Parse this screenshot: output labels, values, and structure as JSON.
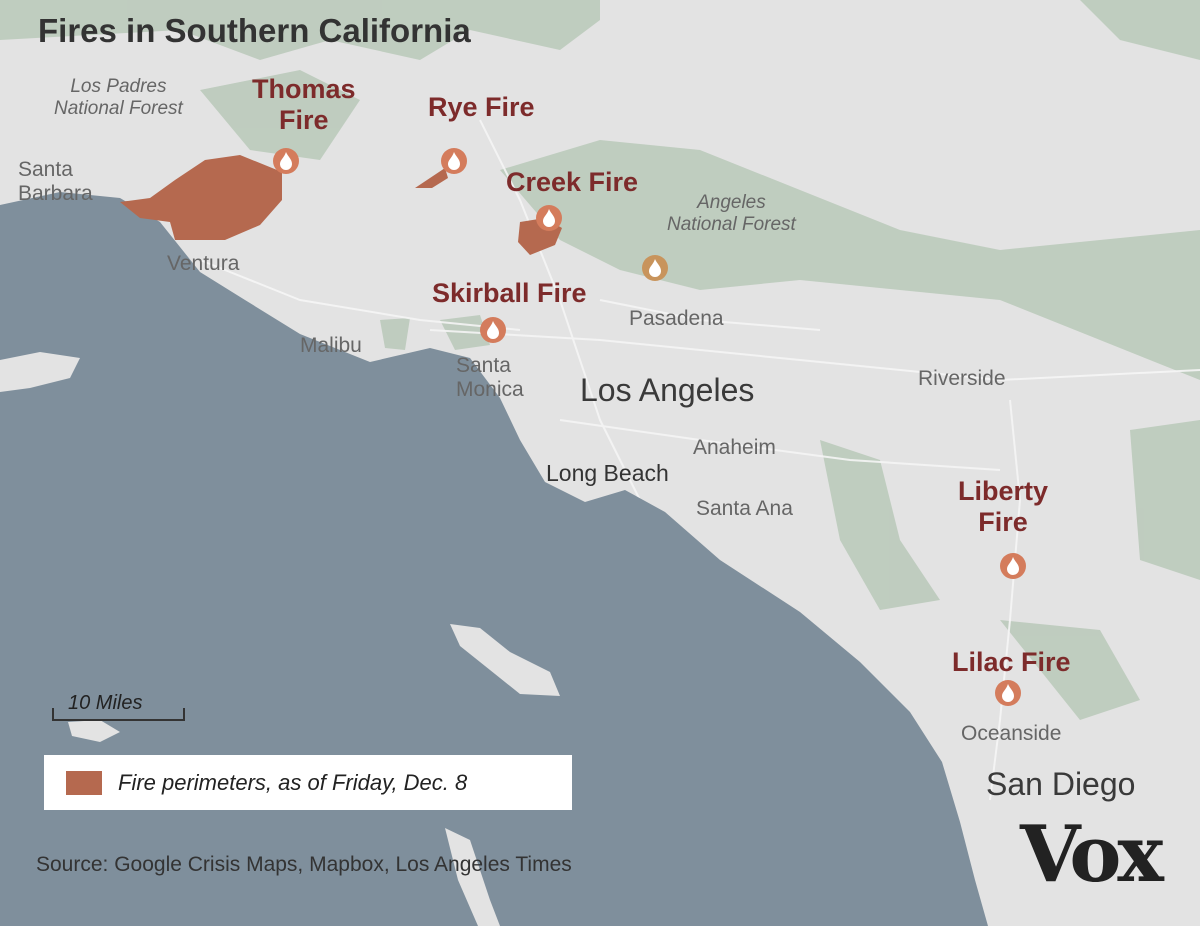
{
  "title": "Fires in Southern California",
  "colors": {
    "ocean": "#7f8f9c",
    "land": "#e3e3e3",
    "forest": "#b9c9b9",
    "fire_perimeter": "#b5694f",
    "fire_icon": "#d47c5c",
    "fire_icon_alt": "#c8945c",
    "fire_label": "#7d2b2b"
  },
  "forests": [
    {
      "name": "Los Padres\nNational Forest",
      "line1": "Los Padres",
      "line2": "National Forest"
    },
    {
      "line1": "Angeles",
      "line2": "National Forest"
    }
  ],
  "fires": [
    {
      "line1": "Thomas",
      "line2": "Fire"
    },
    {
      "line1": "Rye Fire"
    },
    {
      "line1": "Creek Fire"
    },
    {
      "line1": "Skirball Fire"
    },
    {
      "line1": "Liberty",
      "line2": "Fire"
    },
    {
      "line1": "Lilac Fire"
    }
  ],
  "cities": {
    "santa_barbara": [
      "Santa",
      "Barbara"
    ],
    "ventura": "Ventura",
    "malibu": "Malibu",
    "santa_monica": [
      "Santa",
      "Monica"
    ],
    "pasadena": "Pasadena",
    "los_angeles": "Los Angeles",
    "riverside": "Riverside",
    "anaheim": "Anaheim",
    "long_beach": "Long Beach",
    "santa_ana": "Santa Ana",
    "oceanside": "Oceanside",
    "san_diego": "San Diego"
  },
  "scale": "10 Miles",
  "legend": "Fire perimeters, as of Friday, Dec. 8",
  "source": "Source: Google Crisis Maps, Mapbox, Los Angeles Times",
  "logo": "Vox",
  "icons": [
    "fire-icon"
  ]
}
